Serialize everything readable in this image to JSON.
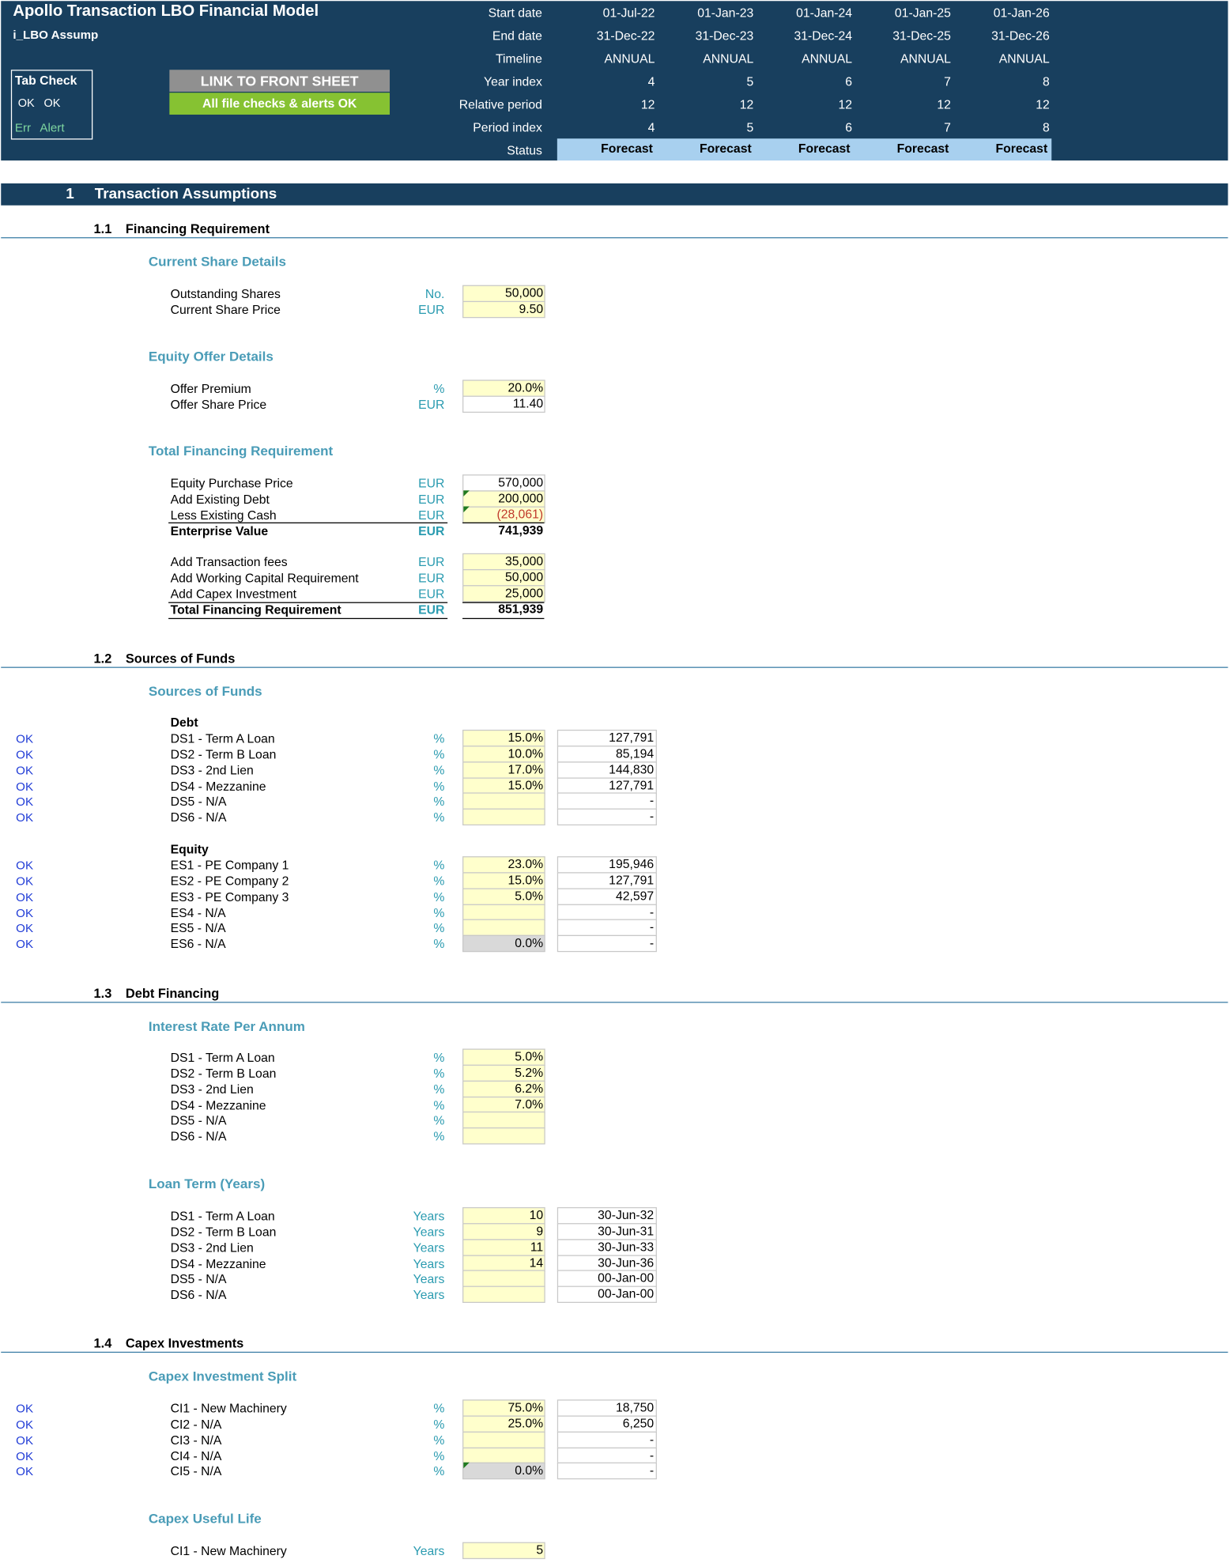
{
  "header": {
    "title": "Apollo Transaction LBO Financial Model",
    "sheet": "i_LBO Assump",
    "tab_check": {
      "title": "Tab Check",
      "ok1": "OK",
      "ok2": "OK",
      "err": "Err",
      "alert": "Alert"
    },
    "link_button": "LINK TO FRONT SHEET",
    "checks_button": "All file checks & alerts OK",
    "row_labels": [
      "Start date",
      "End date",
      "Timeline",
      "Year index",
      "Relative period",
      "Period index",
      "Status"
    ],
    "periods": [
      {
        "start": "01-Jul-22",
        "end": "31-Dec-22",
        "timeline": "ANNUAL",
        "year_index": "4",
        "relative": "12",
        "period_index": "4",
        "status": "Forecast"
      },
      {
        "start": "01-Jan-23",
        "end": "31-Dec-23",
        "timeline": "ANNUAL",
        "year_index": "5",
        "relative": "12",
        "period_index": "5",
        "status": "Forecast"
      },
      {
        "start": "01-Jan-24",
        "end": "31-Dec-24",
        "timeline": "ANNUAL",
        "year_index": "6",
        "relative": "12",
        "period_index": "6",
        "status": "Forecast"
      },
      {
        "start": "01-Jan-25",
        "end": "31-Dec-25",
        "timeline": "ANNUAL",
        "year_index": "7",
        "relative": "12",
        "period_index": "7",
        "status": "Forecast"
      },
      {
        "start": "01-Jan-26",
        "end": "31-Dec-26",
        "timeline": "ANNUAL",
        "year_index": "8",
        "relative": "12",
        "period_index": "8",
        "status": "Forecast"
      }
    ]
  },
  "section1": {
    "num": "1",
    "title": "Transaction Assumptions"
  },
  "s11": {
    "num": "1.1",
    "title": "Financing Requirement",
    "current_share": {
      "title": "Current Share Details",
      "rows": [
        {
          "label": "Outstanding Shares",
          "unit": "No.",
          "value": "50,000"
        },
        {
          "label": "Current Share Price",
          "unit": "EUR",
          "value": "9.50"
        }
      ]
    },
    "equity_offer": {
      "title": "Equity Offer Details",
      "rows": [
        {
          "label": "Offer Premium",
          "unit": "%",
          "value": "20.0%"
        },
        {
          "label": "Offer Share Price",
          "unit": "EUR",
          "value": "11.40"
        }
      ]
    },
    "total_fin": {
      "title": "Total Financing Requirement",
      "rows": [
        {
          "label": "Equity Purchase Price",
          "unit": "EUR",
          "value": "570,000"
        },
        {
          "label": "Add Existing Debt",
          "unit": "EUR",
          "value": "200,000"
        },
        {
          "label": "Less Existing Cash",
          "unit": "EUR",
          "value": "(28,061)"
        },
        {
          "label": "Enterprise Value",
          "unit": "EUR",
          "value": "741,939"
        },
        {
          "label": "Add Transaction fees",
          "unit": "EUR",
          "value": "35,000"
        },
        {
          "label": "Add Working Capital Requirement",
          "unit": "EUR",
          "value": "50,000"
        },
        {
          "label": "Add Capex Investment",
          "unit": "EUR",
          "value": "25,000"
        },
        {
          "label": "Total Financing Requirement",
          "unit": "EUR",
          "value": "851,939"
        }
      ]
    }
  },
  "s12": {
    "num": "1.2",
    "title": "Sources of Funds",
    "group_title": "Sources of Funds",
    "debt_title": "Debt",
    "debt": [
      {
        "flag": "OK",
        "label": "DS1 - Term A Loan",
        "unit": "%",
        "pct": "15.0%",
        "amount": "127,791"
      },
      {
        "flag": "OK",
        "label": "DS2 - Term B Loan",
        "unit": "%",
        "pct": "10.0%",
        "amount": "85,194"
      },
      {
        "flag": "OK",
        "label": "DS3 - 2nd Lien",
        "unit": "%",
        "pct": "17.0%",
        "amount": "144,830"
      },
      {
        "flag": "OK",
        "label": "DS4 - Mezzanine",
        "unit": "%",
        "pct": "15.0%",
        "amount": "127,791"
      },
      {
        "flag": "OK",
        "label": "DS5 - N/A",
        "unit": "%",
        "pct": "",
        "amount": "-"
      },
      {
        "flag": "OK",
        "label": "DS6 - N/A",
        "unit": "%",
        "pct": "",
        "amount": "-"
      }
    ],
    "equity_title": "Equity",
    "equity": [
      {
        "flag": "OK",
        "label": "ES1 - PE Company 1",
        "unit": "%",
        "pct": "23.0%",
        "amount": "195,946"
      },
      {
        "flag": "OK",
        "label": "ES2 - PE Company 2",
        "unit": "%",
        "pct": "15.0%",
        "amount": "127,791"
      },
      {
        "flag": "OK",
        "label": "ES3 - PE Company 3",
        "unit": "%",
        "pct": "5.0%",
        "amount": "42,597"
      },
      {
        "flag": "OK",
        "label": "ES4 - N/A",
        "unit": "%",
        "pct": "",
        "amount": "-"
      },
      {
        "flag": "OK",
        "label": "ES5 - N/A",
        "unit": "%",
        "pct": "",
        "amount": "-"
      },
      {
        "flag": "OK",
        "label": "ES6 - N/A",
        "unit": "%",
        "pct": "0.0%",
        "amount": "-"
      }
    ]
  },
  "s13": {
    "num": "1.3",
    "title": "Debt Financing",
    "interest_title": "Interest Rate Per Annum",
    "interest": [
      {
        "label": "DS1 - Term A Loan",
        "unit": "%",
        "value": "5.0%"
      },
      {
        "label": "DS2 - Term B Loan",
        "unit": "%",
        "value": "5.2%"
      },
      {
        "label": "DS3 - 2nd Lien",
        "unit": "%",
        "value": "6.2%"
      },
      {
        "label": "DS4 - Mezzanine",
        "unit": "%",
        "value": "7.0%"
      },
      {
        "label": "DS5 - N/A",
        "unit": "%",
        "value": ""
      },
      {
        "label": "DS6 - N/A",
        "unit": "%",
        "value": ""
      }
    ],
    "term_title": "Loan Term (Years)",
    "term": [
      {
        "label": "DS1 - Term A Loan",
        "unit": "Years",
        "value": "10",
        "maturity": "30-Jun-32"
      },
      {
        "label": "DS2 - Term B Loan",
        "unit": "Years",
        "value": "9",
        "maturity": "30-Jun-31"
      },
      {
        "label": "DS3 - 2nd Lien",
        "unit": "Years",
        "value": "11",
        "maturity": "30-Jun-33"
      },
      {
        "label": "DS4 - Mezzanine",
        "unit": "Years",
        "value": "14",
        "maturity": "30-Jun-36"
      },
      {
        "label": "DS5 - N/A",
        "unit": "Years",
        "value": "",
        "maturity": "00-Jan-00"
      },
      {
        "label": "DS6 - N/A",
        "unit": "Years",
        "value": "",
        "maturity": "00-Jan-00"
      }
    ]
  },
  "s14": {
    "num": "1.4",
    "title": "Capex Investments",
    "split_title": "Capex Investment Split",
    "split": [
      {
        "flag": "OK",
        "label": "CI1 - New Machinery",
        "unit": "%",
        "pct": "75.0%",
        "amount": "18,750"
      },
      {
        "flag": "OK",
        "label": "CI2 - N/A",
        "unit": "%",
        "pct": "25.0%",
        "amount": "6,250"
      },
      {
        "flag": "OK",
        "label": "CI3 - N/A",
        "unit": "%",
        "pct": "",
        "amount": "-"
      },
      {
        "flag": "OK",
        "label": "CI4 - N/A",
        "unit": "%",
        "pct": "",
        "amount": "-"
      },
      {
        "flag": "OK",
        "label": "CI5 - N/A",
        "unit": "%",
        "pct": "0.0%",
        "amount": "-"
      }
    ],
    "life_title": "Capex Useful Life",
    "life": [
      {
        "label": "CI1 - New Machinery",
        "unit": "Years",
        "value": "5"
      }
    ]
  },
  "colors": {
    "navy": "#183f5e",
    "teal": "#2a9bb0",
    "input_yellow": "#ffffcc",
    "status_blue": "#a8d0ef",
    "ok_green": "#86c232"
  }
}
